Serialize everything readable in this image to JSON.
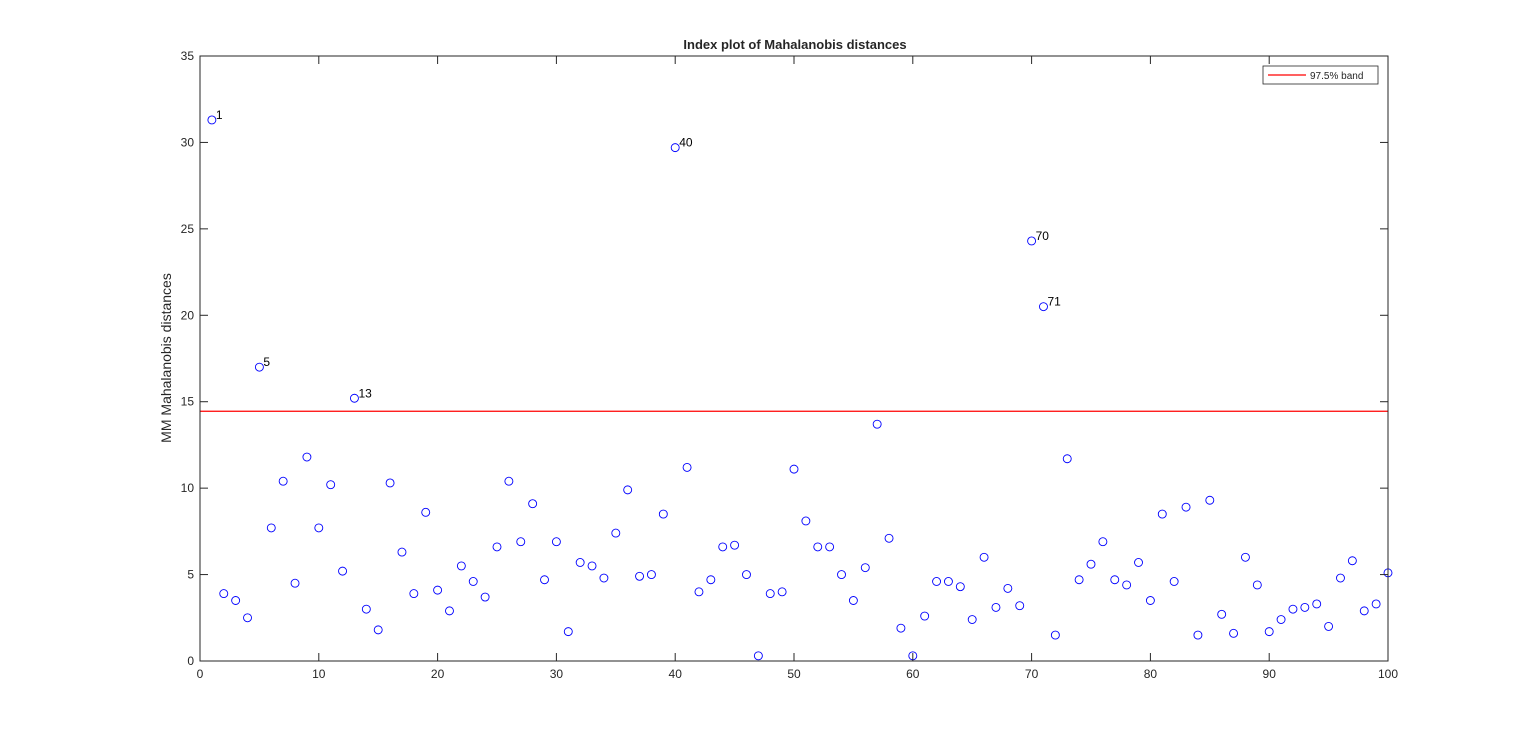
{
  "chart_data": {
    "type": "scatter",
    "title": "Index plot of Mahalanobis distances",
    "xlabel": "",
    "ylabel": "MM Mahalanobis distances",
    "xlim": [
      0,
      100
    ],
    "ylim": [
      0,
      35
    ],
    "xticks": [
      0,
      10,
      20,
      30,
      40,
      50,
      60,
      70,
      80,
      90,
      100
    ],
    "yticks": [
      0,
      5,
      10,
      15,
      20,
      25,
      30,
      35
    ],
    "grid": false,
    "legend": {
      "placement": "top-right",
      "entries": [
        "97.5% band"
      ]
    },
    "colors": {
      "points": "#0000ff",
      "band": "#ff0000",
      "axes": "#262626"
    },
    "band": {
      "name": "97.5% band",
      "value": 14.45
    },
    "series": [
      {
        "x": [
          1,
          2,
          3,
          4,
          5,
          6,
          7,
          8,
          9,
          10,
          11,
          12,
          13,
          14,
          15,
          16,
          17,
          18,
          19,
          20,
          21,
          22,
          23,
          24,
          25,
          26,
          27,
          28,
          29,
          30,
          31,
          32,
          33,
          34,
          35,
          36,
          37,
          38,
          39,
          40,
          41,
          42,
          43,
          44,
          45,
          46,
          47,
          48,
          49,
          50,
          51,
          52,
          53,
          54,
          55,
          56,
          57,
          58,
          59,
          60,
          61,
          62,
          63,
          64,
          65,
          66,
          67,
          68,
          69,
          70,
          71,
          72,
          73,
          74,
          75,
          76,
          77,
          78,
          79,
          80,
          81,
          82,
          83,
          84,
          85,
          86,
          87,
          88,
          89,
          90,
          91,
          92,
          93,
          94,
          95,
          96,
          97,
          98,
          99,
          100
        ],
        "y": [
          31.3,
          3.9,
          3.5,
          2.5,
          17.0,
          7.7,
          10.4,
          4.5,
          11.8,
          7.7,
          10.2,
          5.2,
          15.2,
          3.0,
          1.8,
          10.3,
          6.3,
          3.9,
          8.6,
          4.1,
          2.9,
          5.5,
          4.6,
          3.7,
          6.6,
          10.4,
          6.9,
          9.1,
          4.7,
          6.9,
          1.7,
          5.7,
          5.5,
          4.8,
          7.4,
          9.9,
          4.9,
          5.0,
          8.5,
          29.7,
          11.2,
          4.0,
          4.7,
          6.6,
          6.7,
          5.0,
          0.3,
          3.9,
          4.0,
          11.1,
          8.1,
          6.6,
          6.6,
          5.0,
          3.5,
          5.4,
          13.7,
          7.1,
          1.9,
          0.3,
          2.6,
          4.6,
          4.6,
          4.3,
          2.4,
          6.0,
          3.1,
          4.2,
          3.2,
          24.3,
          20.5,
          1.5,
          11.7,
          4.7,
          5.6,
          6.9,
          4.7,
          4.4,
          5.7,
          3.5,
          8.5,
          4.6,
          8.9,
          1.5,
          9.3,
          2.7,
          1.6,
          6.0,
          4.4,
          1.7,
          2.4,
          3.0,
          3.1,
          3.3,
          2.0,
          4.8,
          5.8,
          2.9,
          3.3,
          5.1
        ]
      }
    ],
    "annotations": [
      {
        "x": 1,
        "y": 31.3,
        "text": "1"
      },
      {
        "x": 5,
        "y": 17.0,
        "text": "5"
      },
      {
        "x": 13,
        "y": 15.2,
        "text": "13"
      },
      {
        "x": 40,
        "y": 29.7,
        "text": "40"
      },
      {
        "x": 70,
        "y": 24.3,
        "text": "70"
      },
      {
        "x": 71,
        "y": 20.5,
        "text": "71"
      }
    ]
  }
}
